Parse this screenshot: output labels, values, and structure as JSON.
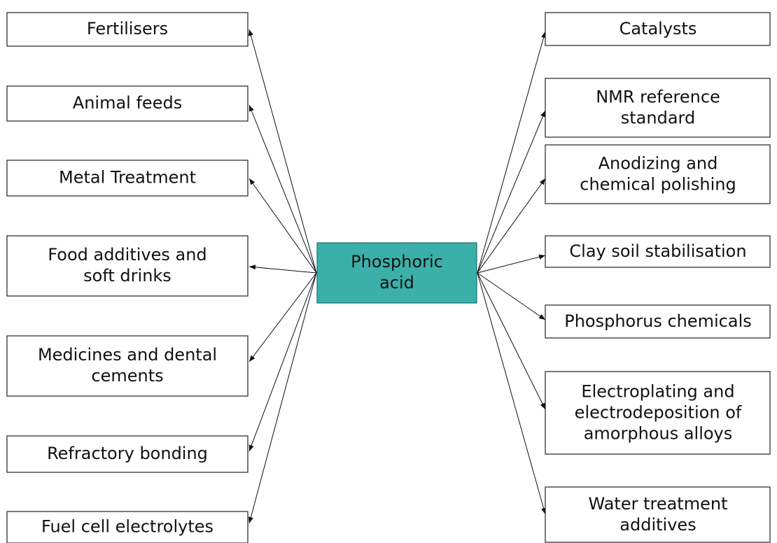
{
  "center": {
    "lines": [
      "Phosphoric",
      "acid"
    ]
  },
  "left": [
    {
      "lines": [
        "Fertilisers"
      ]
    },
    {
      "lines": [
        "Animal feeds"
      ]
    },
    {
      "lines": [
        "Metal Treatment"
      ]
    },
    {
      "lines": [
        "Food additives and",
        "soft drinks"
      ]
    },
    {
      "lines": [
        "Medicines and dental",
        "cements"
      ]
    },
    {
      "lines": [
        "Refractory bonding"
      ]
    },
    {
      "lines": [
        "Fuel cell electrolytes"
      ]
    }
  ],
  "right": [
    {
      "lines": [
        "Catalysts"
      ]
    },
    {
      "lines": [
        "NMR reference",
        "standard"
      ]
    },
    {
      "lines": [
        "Anodizing and",
        "chemical polishing"
      ]
    },
    {
      "lines": [
        "Clay soil stabilisation"
      ]
    },
    {
      "lines": [
        "Phosphorus chemicals"
      ]
    },
    {
      "lines": [
        "Electroplating and",
        "electrodeposition of",
        "amorphous alloys"
      ]
    },
    {
      "lines": [
        "Water treatment",
        "additives"
      ]
    }
  ]
}
